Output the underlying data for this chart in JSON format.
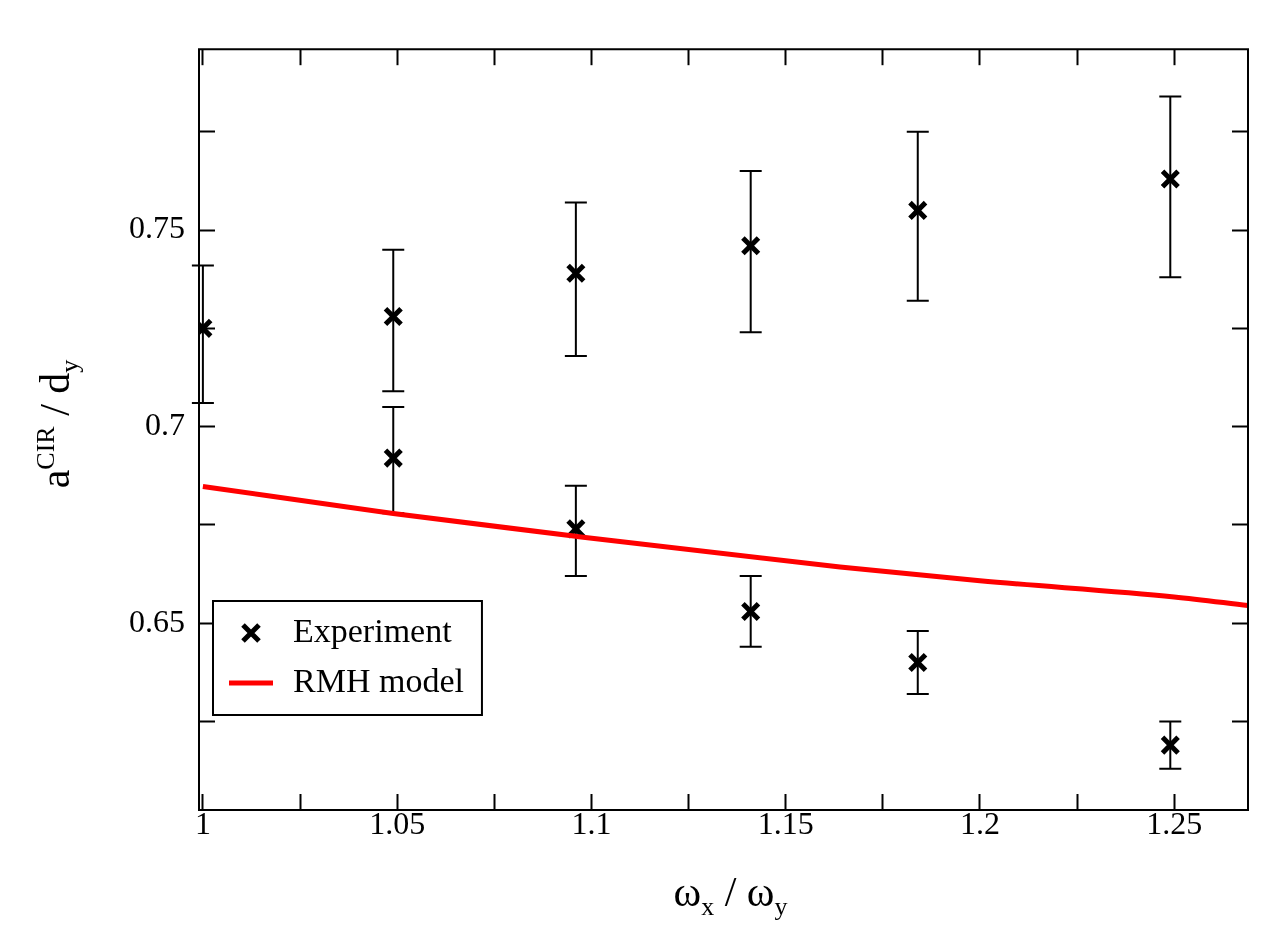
{
  "chart_data": {
    "type": "scatter",
    "xlabel": "ω$_{x}$ / ω$_{y}$",
    "ylabel": "a$^{CIR}$ / d$_{y}$",
    "xlim": [
      0.999,
      1.269
    ],
    "ylim": [
      0.6025,
      0.796
    ],
    "xticks": [
      1,
      {
        "value": 1.025,
        "label": null
      },
      1.05,
      {
        "value": 1.075,
        "label": null
      },
      1.1,
      {
        "value": 1.125,
        "label": null
      },
      1.15,
      {
        "value": 1.175,
        "label": null
      },
      1.2,
      {
        "value": 1.225,
        "label": null
      },
      1.25
    ],
    "yticks": [
      {
        "value": 0.625,
        "label": null
      },
      0.65,
      {
        "value": 0.675,
        "label": null
      },
      0.7,
      {
        "value": 0.725,
        "label": null
      },
      0.75,
      {
        "value": 0.775,
        "label": null
      }
    ],
    "grid": false,
    "legend": "bottom left",
    "series": [
      {
        "name": "Experiment",
        "type": "scatter",
        "marker": "cross",
        "color": "#000000",
        "x": [
          1.0,
          1.049,
          1.049,
          1.096,
          1.096,
          1.141,
          1.141,
          1.184,
          1.184,
          1.249,
          1.249
        ],
        "values": [
          0.725,
          0.728,
          0.692,
          0.739,
          0.674,
          0.746,
          0.653,
          0.755,
          0.64,
          0.763,
          0.619
        ],
        "errors": [
          [
            0.706,
            0.741
          ],
          [
            0.709,
            0.745
          ],
          [
            0.678,
            0.705
          ],
          [
            0.718,
            0.757
          ],
          [
            0.662,
            0.685
          ],
          [
            0.724,
            0.765
          ],
          [
            0.644,
            0.662
          ],
          [
            0.732,
            0.775
          ],
          [
            0.632,
            0.648
          ],
          [
            0.738,
            0.784
          ],
          [
            0.613,
            0.625
          ]
        ]
      },
      {
        "name": "RMH model",
        "type": "line",
        "marker": "none",
        "color": "#ff0000",
        "x": [
          1.0,
          1.049,
          1.096,
          1.164,
          1.2,
          1.25,
          1.269
        ],
        "values": [
          0.6848,
          0.6779,
          0.6721,
          0.6643,
          0.6608,
          0.6567,
          0.6545
        ]
      }
    ]
  }
}
